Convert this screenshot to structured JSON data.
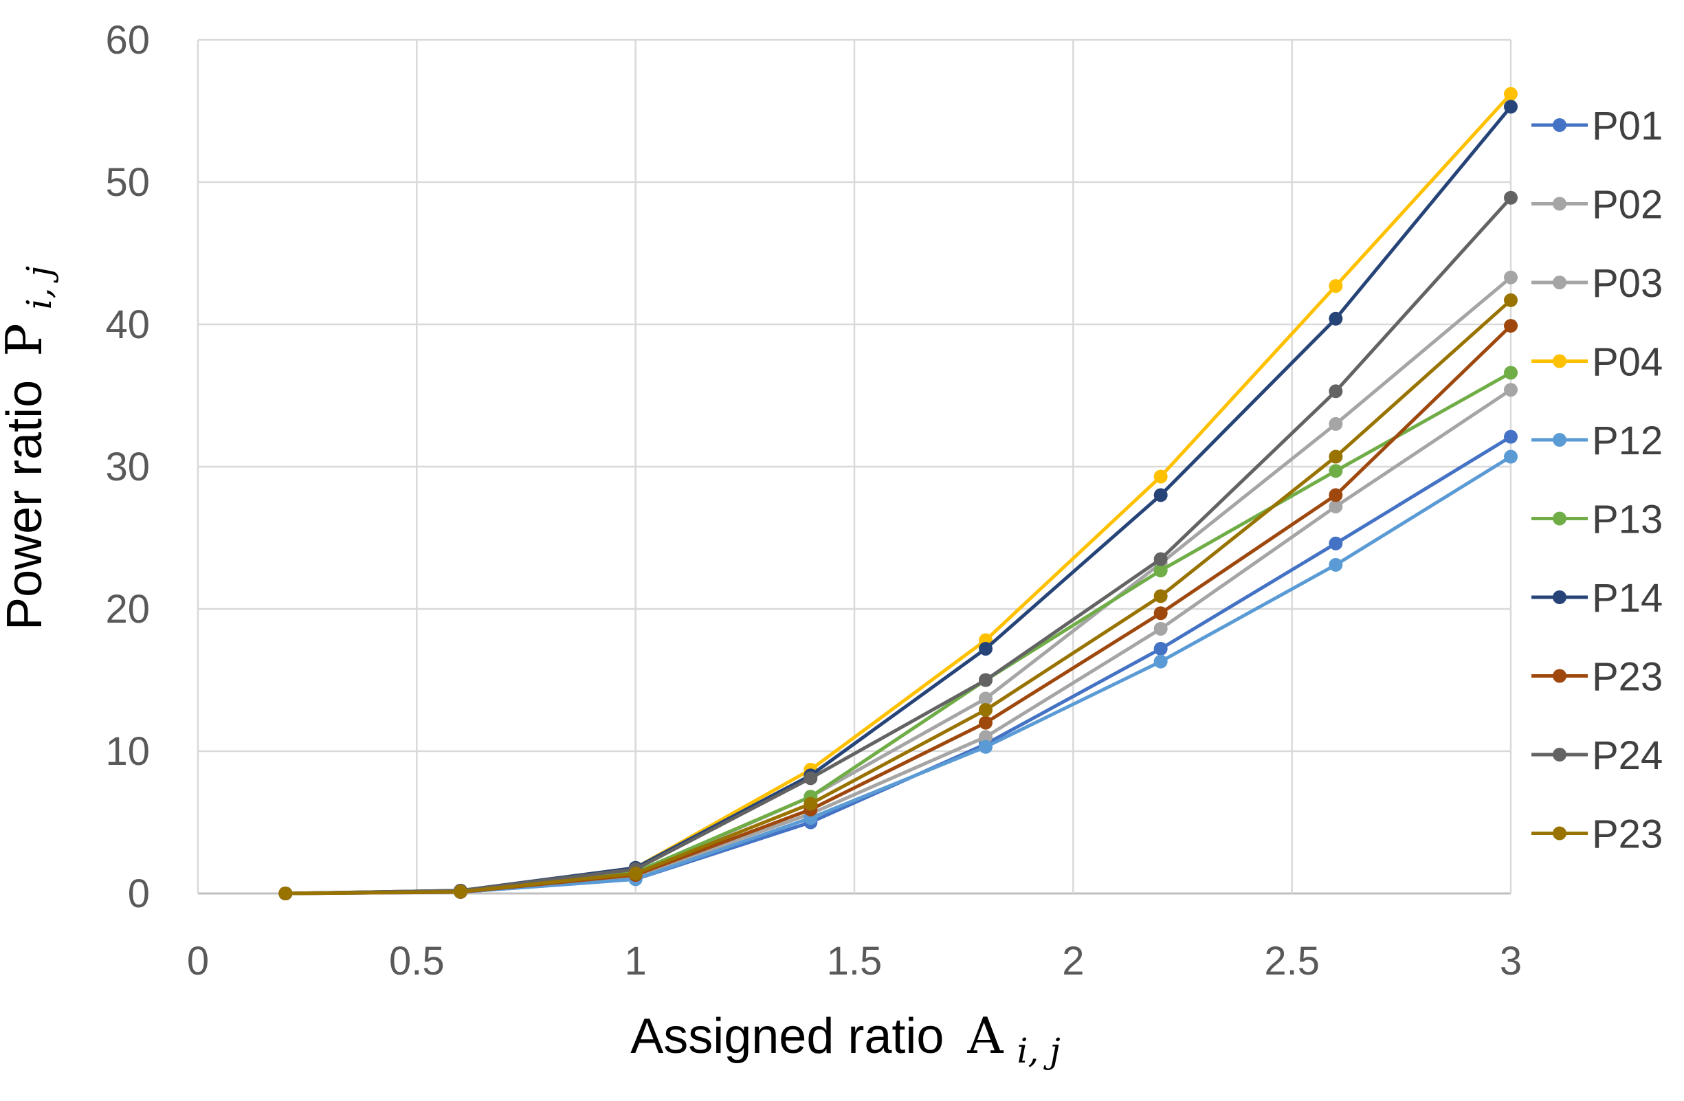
{
  "chart_data": {
    "type": "line",
    "title": "",
    "xlabel": "Assigned ratio",
    "xlabel_symbol": "A",
    "xlabel_subscript": "i, j",
    "ylabel": "Power ratio",
    "ylabel_symbol": "P",
    "ylabel_subscript": "i, j",
    "xlim": [
      0,
      3
    ],
    "ylim": [
      0,
      60
    ],
    "x_ticks": [
      "0",
      "0.5",
      "1",
      "1.5",
      "2",
      "2.5",
      "3"
    ],
    "x_tick_values": [
      0,
      0.5,
      1,
      1.5,
      2,
      2.5,
      3
    ],
    "y_ticks": [
      "0",
      "10",
      "20",
      "30",
      "40",
      "50",
      "60"
    ],
    "y_tick_values": [
      0,
      10,
      20,
      30,
      40,
      50,
      60
    ],
    "grid": true,
    "legend_position": "right",
    "x": [
      0.2,
      0.6,
      1.0,
      1.4,
      1.8,
      2.2,
      2.6,
      3.0
    ],
    "series": [
      {
        "name": "P01",
        "color": "#4472C4",
        "values": [
          0,
          0.1,
          1.0,
          5.0,
          10.5,
          17.2,
          24.6,
          32.1
        ]
      },
      {
        "name": "P02",
        "color": "#A5A5A5",
        "values": [
          0,
          0.1,
          1.2,
          5.6,
          11.0,
          18.6,
          27.2,
          35.4
        ]
      },
      {
        "name": "P03",
        "color": "#A5A5A5",
        "values": [
          0,
          0.15,
          1.4,
          6.8,
          13.7,
          23.2,
          33.0,
          43.3
        ]
      },
      {
        "name": "P04",
        "color": "#FFC000",
        "values": [
          0,
          0.2,
          1.8,
          8.7,
          17.8,
          29.3,
          42.7,
          56.2
        ]
      },
      {
        "name": "P12",
        "color": "#5B9BD5",
        "values": [
          0,
          0.1,
          1.0,
          5.3,
          10.3,
          16.3,
          23.1,
          30.7
        ]
      },
      {
        "name": "P13",
        "color": "#70AD47",
        "values": [
          0,
          0.15,
          1.5,
          6.8,
          15.0,
          22.7,
          29.7,
          36.6
        ]
      },
      {
        "name": "P14",
        "color": "#264478",
        "values": [
          0,
          0.2,
          1.8,
          8.3,
          17.2,
          28.0,
          40.4,
          55.3
        ]
      },
      {
        "name": "P23",
        "color": "#9E480E",
        "values": [
          0,
          0.1,
          1.3,
          5.9,
          12.0,
          19.7,
          28.0,
          39.9
        ]
      },
      {
        "name": "P24",
        "color": "#636363",
        "values": [
          0,
          0.2,
          1.7,
          8.1,
          15.0,
          23.5,
          35.3,
          48.9
        ]
      },
      {
        "name": "P23",
        "color": "#997300",
        "values": [
          0,
          0.12,
          1.4,
          6.3,
          12.9,
          20.9,
          30.7,
          41.7
        ]
      }
    ]
  }
}
